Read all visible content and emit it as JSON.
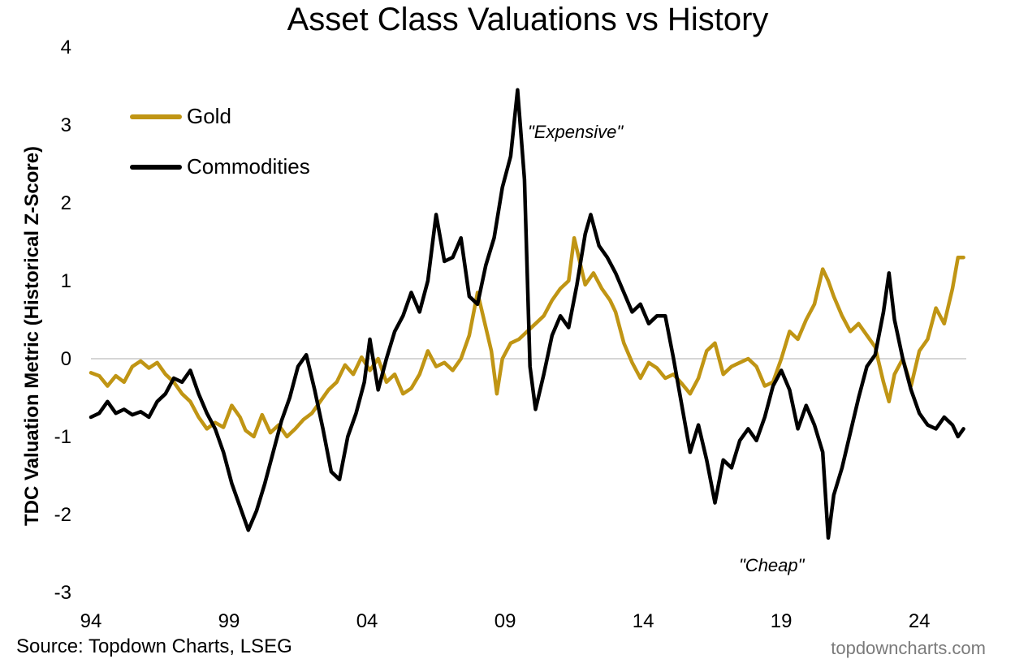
{
  "chart_data": {
    "type": "line",
    "title": "Asset Class Valuations vs History",
    "ylabel": "TDC Valuation Metric (Historical Z-Score)",
    "xlabel": "",
    "ylim": [
      -3,
      4
    ],
    "yticks": [
      "4",
      "3",
      "2",
      "1",
      "0",
      "-1",
      "-2",
      "-3"
    ],
    "xlim": [
      1994,
      2025.7
    ],
    "xticks": [
      "94",
      "99",
      "04",
      "09",
      "14",
      "19",
      "24"
    ],
    "zero_line": true,
    "legend": {
      "placement": "top-left"
    },
    "annotations": [
      {
        "text": "\"Expensive\"",
        "x": 2010.0,
        "y": 2.85
      },
      {
        "text": "\"Cheap\"",
        "x": 2019.2,
        "y": -2.7
      }
    ],
    "series": [
      {
        "name": "Gold",
        "color": "#c09514",
        "points": [
          [
            1994.0,
            -0.18
          ],
          [
            1994.3,
            -0.22
          ],
          [
            1994.6,
            -0.35
          ],
          [
            1994.9,
            -0.22
          ],
          [
            1995.2,
            -0.3
          ],
          [
            1995.5,
            -0.1
          ],
          [
            1995.8,
            -0.03
          ],
          [
            1996.1,
            -0.12
          ],
          [
            1996.4,
            -0.05
          ],
          [
            1996.7,
            -0.2
          ],
          [
            1997.0,
            -0.3
          ],
          [
            1997.3,
            -0.45
          ],
          [
            1997.6,
            -0.55
          ],
          [
            1997.9,
            -0.75
          ],
          [
            1998.2,
            -0.9
          ],
          [
            1998.5,
            -0.82
          ],
          [
            1998.8,
            -0.88
          ],
          [
            1999.1,
            -0.6
          ],
          [
            1999.4,
            -0.75
          ],
          [
            1999.6,
            -0.92
          ],
          [
            1999.9,
            -1.0
          ],
          [
            2000.2,
            -0.72
          ],
          [
            2000.5,
            -0.95
          ],
          [
            2000.8,
            -0.85
          ],
          [
            2001.1,
            -1.0
          ],
          [
            2001.4,
            -0.9
          ],
          [
            2001.7,
            -0.78
          ],
          [
            2002.0,
            -0.7
          ],
          [
            2002.3,
            -0.55
          ],
          [
            2002.6,
            -0.4
          ],
          [
            2002.9,
            -0.3
          ],
          [
            2003.2,
            -0.08
          ],
          [
            2003.5,
            -0.2
          ],
          [
            2003.8,
            0.02
          ],
          [
            2004.1,
            -0.15
          ],
          [
            2004.4,
            0.0
          ],
          [
            2004.7,
            -0.3
          ],
          [
            2005.0,
            -0.2
          ],
          [
            2005.3,
            -0.45
          ],
          [
            2005.6,
            -0.38
          ],
          [
            2005.9,
            -0.2
          ],
          [
            2006.2,
            0.1
          ],
          [
            2006.5,
            -0.1
          ],
          [
            2006.8,
            -0.05
          ],
          [
            2007.1,
            -0.15
          ],
          [
            2007.4,
            0.0
          ],
          [
            2007.7,
            0.3
          ],
          [
            2008.0,
            0.85
          ],
          [
            2008.2,
            0.55
          ],
          [
            2008.5,
            0.1
          ],
          [
            2008.7,
            -0.45
          ],
          [
            2008.9,
            0.0
          ],
          [
            2009.2,
            0.2
          ],
          [
            2009.5,
            0.25
          ],
          [
            2009.8,
            0.35
          ],
          [
            2010.1,
            0.45
          ],
          [
            2010.4,
            0.55
          ],
          [
            2010.7,
            0.75
          ],
          [
            2011.0,
            0.9
          ],
          [
            2011.3,
            1.0
          ],
          [
            2011.5,
            1.55
          ],
          [
            2011.7,
            1.25
          ],
          [
            2011.9,
            0.95
          ],
          [
            2012.2,
            1.1
          ],
          [
            2012.5,
            0.9
          ],
          [
            2012.8,
            0.75
          ],
          [
            2013.0,
            0.6
          ],
          [
            2013.3,
            0.2
          ],
          [
            2013.6,
            -0.05
          ],
          [
            2013.9,
            -0.25
          ],
          [
            2014.2,
            -0.05
          ],
          [
            2014.5,
            -0.12
          ],
          [
            2014.8,
            -0.25
          ],
          [
            2015.1,
            -0.2
          ],
          [
            2015.4,
            -0.32
          ],
          [
            2015.7,
            -0.45
          ],
          [
            2016.0,
            -0.25
          ],
          [
            2016.3,
            0.1
          ],
          [
            2016.6,
            0.2
          ],
          [
            2016.9,
            -0.2
          ],
          [
            2017.2,
            -0.1
          ],
          [
            2017.5,
            -0.05
          ],
          [
            2017.8,
            0.0
          ],
          [
            2018.1,
            -0.1
          ],
          [
            2018.4,
            -0.35
          ],
          [
            2018.7,
            -0.3
          ],
          [
            2019.0,
            0.0
          ],
          [
            2019.3,
            0.35
          ],
          [
            2019.6,
            0.25
          ],
          [
            2019.9,
            0.5
          ],
          [
            2020.2,
            0.7
          ],
          [
            2020.5,
            1.15
          ],
          [
            2020.7,
            1.0
          ],
          [
            2020.9,
            0.8
          ],
          [
            2021.2,
            0.55
          ],
          [
            2021.5,
            0.35
          ],
          [
            2021.8,
            0.45
          ],
          [
            2022.1,
            0.3
          ],
          [
            2022.4,
            0.15
          ],
          [
            2022.7,
            -0.3
          ],
          [
            2022.9,
            -0.55
          ],
          [
            2023.1,
            -0.2
          ],
          [
            2023.4,
            0.0
          ],
          [
            2023.7,
            -0.35
          ],
          [
            2024.0,
            0.1
          ],
          [
            2024.3,
            0.25
          ],
          [
            2024.6,
            0.65
          ],
          [
            2024.9,
            0.45
          ],
          [
            2025.2,
            0.9
          ],
          [
            2025.4,
            1.3
          ],
          [
            2025.6,
            1.3
          ]
        ]
      },
      {
        "name": "Commodities",
        "color": "#000000",
        "points": [
          [
            1994.0,
            -0.75
          ],
          [
            1994.3,
            -0.7
          ],
          [
            1994.6,
            -0.55
          ],
          [
            1994.9,
            -0.7
          ],
          [
            1995.2,
            -0.65
          ],
          [
            1995.5,
            -0.72
          ],
          [
            1995.8,
            -0.68
          ],
          [
            1996.1,
            -0.75
          ],
          [
            1996.4,
            -0.55
          ],
          [
            1996.7,
            -0.45
          ],
          [
            1997.0,
            -0.25
          ],
          [
            1997.3,
            -0.3
          ],
          [
            1997.6,
            -0.15
          ],
          [
            1997.9,
            -0.45
          ],
          [
            1998.2,
            -0.7
          ],
          [
            1998.5,
            -0.9
          ],
          [
            1998.8,
            -1.2
          ],
          [
            1999.1,
            -1.6
          ],
          [
            1999.4,
            -1.9
          ],
          [
            1999.7,
            -2.2
          ],
          [
            2000.0,
            -1.95
          ],
          [
            2000.3,
            -1.6
          ],
          [
            2000.6,
            -1.2
          ],
          [
            2000.9,
            -0.8
          ],
          [
            2001.2,
            -0.5
          ],
          [
            2001.5,
            -0.1
          ],
          [
            2001.8,
            0.05
          ],
          [
            2002.1,
            -0.4
          ],
          [
            2002.4,
            -0.9
          ],
          [
            2002.7,
            -1.45
          ],
          [
            2003.0,
            -1.55
          ],
          [
            2003.3,
            -1.0
          ],
          [
            2003.6,
            -0.7
          ],
          [
            2003.9,
            -0.3
          ],
          [
            2004.1,
            0.25
          ],
          [
            2004.4,
            -0.4
          ],
          [
            2004.7,
            0.0
          ],
          [
            2005.0,
            0.35
          ],
          [
            2005.3,
            0.55
          ],
          [
            2005.6,
            0.85
          ],
          [
            2005.9,
            0.6
          ],
          [
            2006.2,
            1.0
          ],
          [
            2006.5,
            1.85
          ],
          [
            2006.8,
            1.25
          ],
          [
            2007.1,
            1.3
          ],
          [
            2007.4,
            1.55
          ],
          [
            2007.7,
            0.8
          ],
          [
            2008.0,
            0.7
          ],
          [
            2008.3,
            1.2
          ],
          [
            2008.6,
            1.55
          ],
          [
            2008.9,
            2.2
          ],
          [
            2009.2,
            2.6
          ],
          [
            2009.45,
            3.45
          ],
          [
            2009.7,
            2.3
          ],
          [
            2009.9,
            -0.1
          ],
          [
            2010.1,
            -0.65
          ],
          [
            2010.4,
            -0.2
          ],
          [
            2010.7,
            0.3
          ],
          [
            2011.0,
            0.55
          ],
          [
            2011.3,
            0.4
          ],
          [
            2011.6,
            0.95
          ],
          [
            2011.9,
            1.6
          ],
          [
            2012.1,
            1.85
          ],
          [
            2012.4,
            1.45
          ],
          [
            2012.7,
            1.3
          ],
          [
            2013.0,
            1.1
          ],
          [
            2013.3,
            0.85
          ],
          [
            2013.6,
            0.6
          ],
          [
            2013.9,
            0.7
          ],
          [
            2014.2,
            0.45
          ],
          [
            2014.5,
            0.55
          ],
          [
            2014.8,
            0.55
          ],
          [
            2015.1,
            0.0
          ],
          [
            2015.4,
            -0.6
          ],
          [
            2015.7,
            -1.2
          ],
          [
            2016.0,
            -0.85
          ],
          [
            2016.3,
            -1.3
          ],
          [
            2016.6,
            -1.85
          ],
          [
            2016.9,
            -1.3
          ],
          [
            2017.2,
            -1.4
          ],
          [
            2017.5,
            -1.05
          ],
          [
            2017.8,
            -0.9
          ],
          [
            2018.1,
            -1.05
          ],
          [
            2018.4,
            -0.75
          ],
          [
            2018.7,
            -0.35
          ],
          [
            2019.0,
            -0.15
          ],
          [
            2019.3,
            -0.4
          ],
          [
            2019.6,
            -0.9
          ],
          [
            2019.9,
            -0.6
          ],
          [
            2020.2,
            -0.85
          ],
          [
            2020.5,
            -1.2
          ],
          [
            2020.7,
            -2.3
          ],
          [
            2020.9,
            -1.75
          ],
          [
            2021.2,
            -1.4
          ],
          [
            2021.5,
            -0.95
          ],
          [
            2021.8,
            -0.5
          ],
          [
            2022.1,
            -0.1
          ],
          [
            2022.4,
            0.05
          ],
          [
            2022.7,
            0.6
          ],
          [
            2022.9,
            1.1
          ],
          [
            2023.1,
            0.5
          ],
          [
            2023.4,
            0.0
          ],
          [
            2023.7,
            -0.4
          ],
          [
            2024.0,
            -0.7
          ],
          [
            2024.3,
            -0.85
          ],
          [
            2024.6,
            -0.9
          ],
          [
            2024.9,
            -0.75
          ],
          [
            2025.2,
            -0.85
          ],
          [
            2025.4,
            -1.0
          ],
          [
            2025.6,
            -0.9
          ]
        ]
      }
    ]
  },
  "source": "Source: Topdown Charts, LSEG",
  "watermark": "topdowncharts.com"
}
